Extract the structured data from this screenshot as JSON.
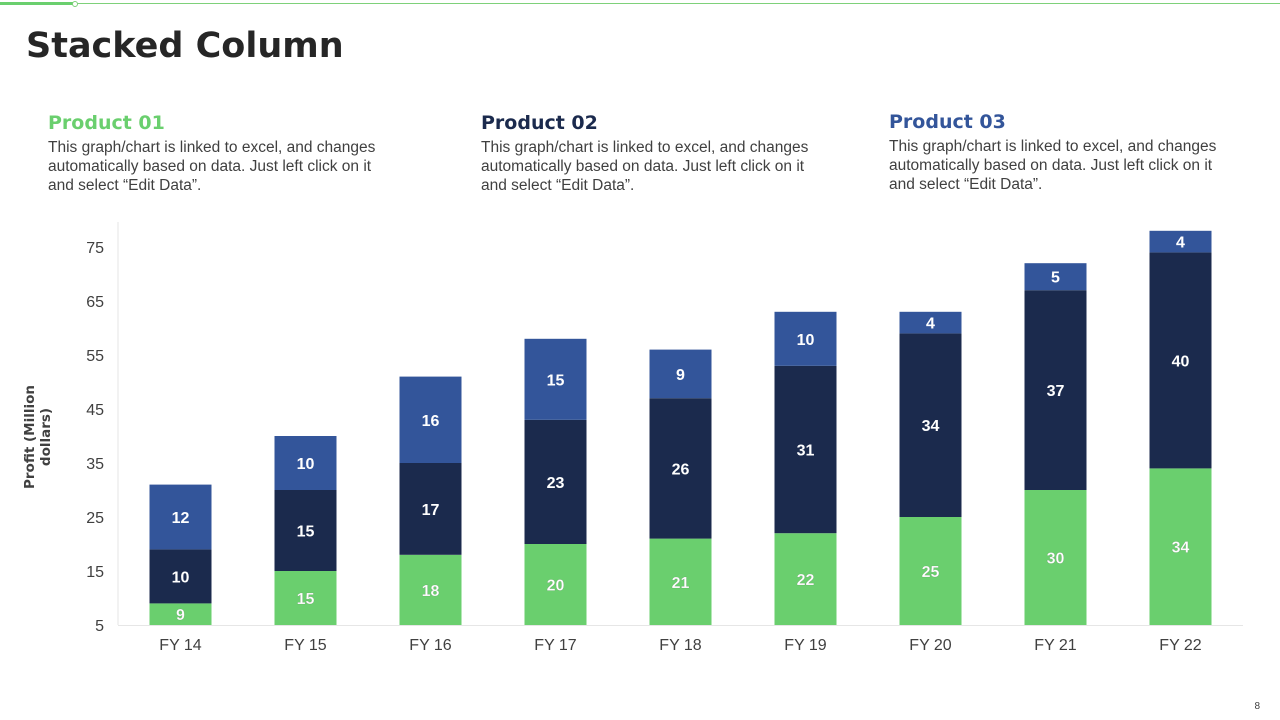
{
  "slide": {
    "title": "Stacked Column",
    "page_number": "8"
  },
  "products": [
    {
      "name": "Product 01",
      "color": "#6acf6e",
      "description": "This graph/chart is linked to excel, and changes automatically based on data. Just left click on it and select “Edit Data”."
    },
    {
      "name": "Product 02",
      "color": "#1b2a4d",
      "description": "This graph/chart is linked to excel, and changes automatically based on data. Just left click on it and select “Edit Data”."
    },
    {
      "name": "Product 03",
      "color": "#33559a",
      "description": "This graph/chart is linked to excel, and changes automatically based on data. Just left click on it and select “Edit Data”."
    }
  ],
  "chart_data": {
    "type": "bar",
    "stacked": true,
    "title": "",
    "xlabel": "",
    "ylabel": "Profit  (Million dollars)",
    "categories": [
      "FY 14",
      "FY 15",
      "FY 16",
      "FY 17",
      "FY 18",
      "FY 19",
      "FY 20",
      "FY 21",
      "FY 22"
    ],
    "series": [
      {
        "name": "Product 01",
        "color": "#6acf6e",
        "values": [
          9,
          15,
          18,
          20,
          21,
          22,
          25,
          30,
          34
        ]
      },
      {
        "name": "Product 02",
        "color": "#1b2a4d",
        "values": [
          10,
          15,
          17,
          23,
          26,
          31,
          34,
          37,
          40
        ]
      },
      {
        "name": "Product 03",
        "color": "#33559a",
        "values": [
          12,
          10,
          16,
          15,
          9,
          10,
          4,
          5,
          4
        ]
      }
    ],
    "ylim": [
      5,
      75
    ],
    "yticks": [
      5,
      15,
      25,
      35,
      45,
      55,
      65,
      75
    ],
    "grid": false,
    "legend": "none",
    "data_labels": true
  }
}
